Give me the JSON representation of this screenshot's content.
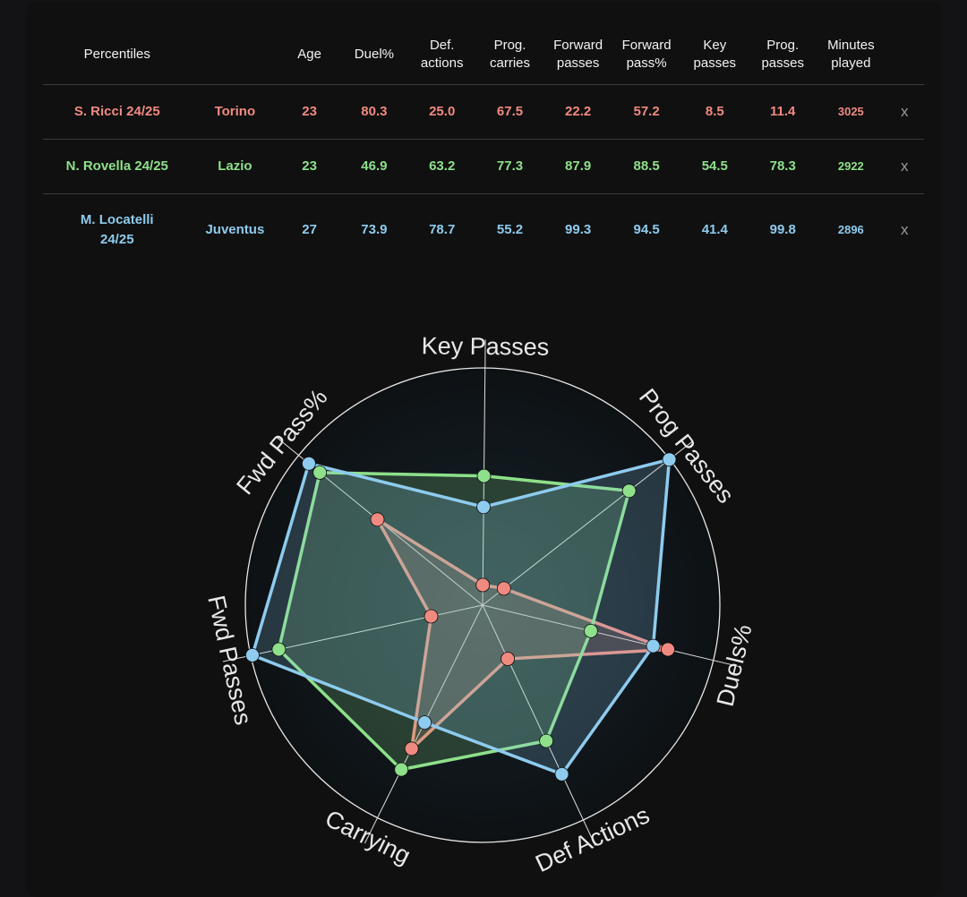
{
  "table": {
    "headers": [
      "Percentiles",
      "",
      "Age",
      "Duel%",
      "Def.\nactions",
      "Prog.\ncarries",
      "Forward\npasses",
      "Forward\npass%",
      "Key\npasses",
      "Prog.\npasses",
      "Minutes\nplayed",
      ""
    ],
    "rows": [
      {
        "player": "S. Ricci 24/25",
        "team": "Torino",
        "age": "23",
        "duel": "80.3",
        "def_actions": "25.0",
        "prog_carries": "67.5",
        "fwd_passes": "22.2",
        "fwd_pass_pct": "57.2",
        "key_passes": "8.5",
        "prog_passes": "11.4",
        "minutes": "3025",
        "remove": "x"
      },
      {
        "player": "N. Rovella 24/25",
        "team": "Lazio",
        "age": "23",
        "duel": "46.9",
        "def_actions": "63.2",
        "prog_carries": "77.3",
        "fwd_passes": "87.9",
        "fwd_pass_pct": "88.5",
        "key_passes": "54.5",
        "prog_passes": "78.3",
        "minutes": "2922",
        "remove": "x"
      },
      {
        "player": "M. Locatelli 24/25",
        "team": "Juventus",
        "age": "27",
        "duel": "73.9",
        "def_actions": "78.7",
        "prog_carries": "55.2",
        "fwd_passes": "99.3",
        "fwd_pass_pct": "94.5",
        "key_passes": "41.4",
        "prog_passes": "99.8",
        "minutes": "2896",
        "remove": "x"
      }
    ]
  },
  "colors": {
    "ricci": "#f08a80",
    "rovella": "#8ee08a",
    "locatelli": "#8ecbee"
  },
  "chart_data": {
    "type": "radar",
    "axes": [
      "Key Passes",
      "Prog Passes",
      "Duels%",
      "Def Actions",
      "Carrying",
      "Fwd Passes",
      "Fwd Pass%"
    ],
    "range": [
      0,
      100
    ],
    "grid": false,
    "series": [
      {
        "name": "S. Ricci 24/25",
        "values": [
          8.5,
          11.4,
          80.3,
          25.0,
          67.5,
          22.2,
          57.2
        ]
      },
      {
        "name": "N. Rovella 24/25",
        "values": [
          54.5,
          78.3,
          46.9,
          63.2,
          77.3,
          87.9,
          88.5
        ]
      },
      {
        "name": "M. Locatelli 24/25",
        "values": [
          41.4,
          99.8,
          73.9,
          78.7,
          55.2,
          99.3,
          94.5
        ]
      }
    ]
  }
}
